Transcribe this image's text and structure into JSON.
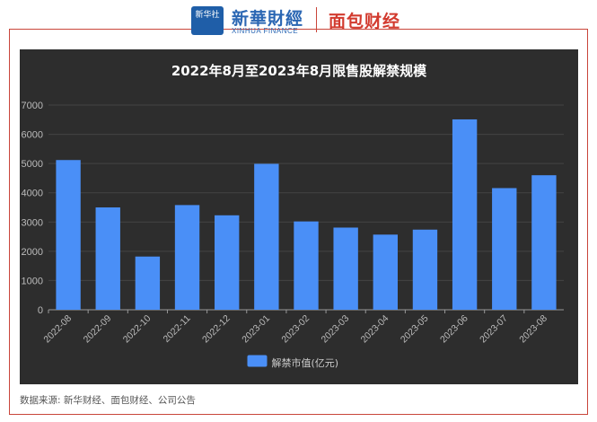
{
  "header": {
    "badge": "新华社",
    "brand": "新華財經",
    "brand_sub": "XINHUA FINANCE",
    "partner": "面包财经"
  },
  "source_note": "数据来源: 新华财经、面包财经、公司公告",
  "colors": {
    "bar": "#4a8ff7",
    "panel": "#2d2d2d",
    "frame": "#c9453a"
  },
  "chart_data": {
    "type": "bar",
    "title": "2022年8月至2023年8月限售股解禁规模",
    "categories": [
      "2022-08",
      "2022-09",
      "2022-10",
      "2022-11",
      "2022-12",
      "2023-01",
      "2023-02",
      "2023-03",
      "2023-04",
      "2023-05",
      "2023-06",
      "2023-07",
      "2023-08"
    ],
    "series": [
      {
        "name": "解禁市值(亿元)",
        "values": [
          5120,
          3500,
          1820,
          3580,
          3230,
          4990,
          3020,
          2810,
          2570,
          2740,
          6510,
          4160,
          4600
        ]
      }
    ],
    "yticks": [
      0,
      1000,
      2000,
      3000,
      4000,
      5000,
      6000,
      7000
    ],
    "ylim": [
      0,
      7000
    ],
    "grid": true,
    "legend_position": "bottom-center"
  }
}
